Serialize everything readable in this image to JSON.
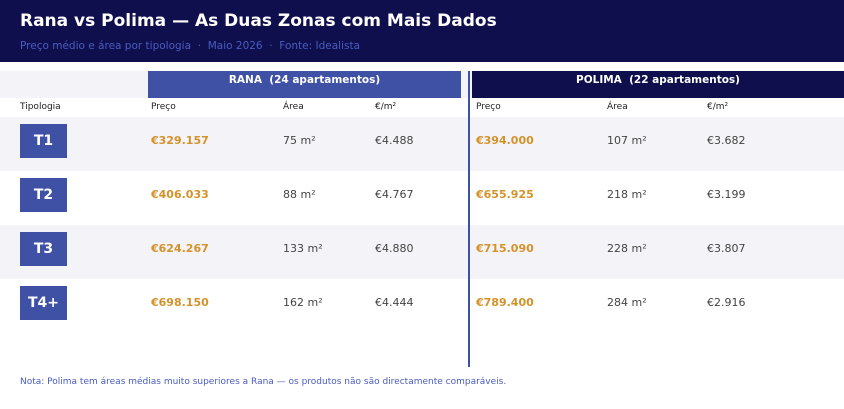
{
  "header": {
    "title": "Rana vs Polima — As Duas Zonas com Mais Dados",
    "subtitle": "Preço médio e área por tipologia  ·  Maio 2026  ·  Fonte: Idealista"
  },
  "table": {
    "groups": [
      "RANA  (24 apartamentos)",
      "POLIMA  (22 apartamentos)"
    ],
    "columns": [
      "Tipologia",
      "Preço",
      "Área",
      "€/m²",
      "Preço",
      "Área",
      "€/m²"
    ],
    "rows": [
      [
        "T1",
        "€329.157",
        "75 m²",
        "€4.488",
        "€394.000",
        "107 m²",
        "€3.682"
      ],
      [
        "T2",
        "€406.033",
        "88 m²",
        "€4.767",
        "€655.925",
        "218 m²",
        "€3.199"
      ],
      [
        "T3",
        "€624.267",
        "133 m²",
        "€4.880",
        "€715.090",
        "228 m²",
        "€3.807"
      ],
      [
        "T4+",
        "€698.150",
        "162 m²",
        "€4.444",
        "€789.400",
        "284 m²",
        "€2.916"
      ]
    ]
  },
  "note": "Nota: Polima tem áreas médias muito superiores a Rana — os produtos não são directamente comparáveis."
}
